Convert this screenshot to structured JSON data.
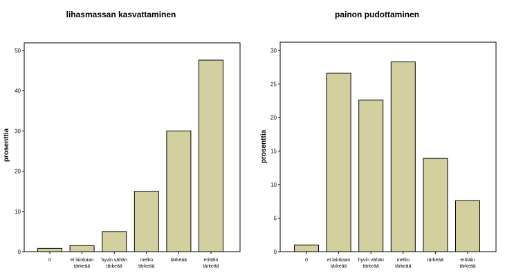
{
  "chart_data": [
    {
      "type": "bar",
      "title": "lihasmassan kasvattaminen",
      "ylabel": "prosenttia",
      "xlabel": "",
      "categories": [
        [
          "0"
        ],
        [
          "ei lainkaan",
          "tärkeää"
        ],
        [
          "hyvin vähän",
          "tärkeää"
        ],
        [
          "melko",
          "tärkeää"
        ],
        [
          "tärkeää"
        ],
        [
          "erittäin",
          "tärkeää"
        ]
      ],
      "values": [
        0.8,
        1.5,
        5.0,
        15.0,
        30.0,
        47.6
      ],
      "ylim": [
        0,
        50
      ],
      "yticks": [
        0,
        10,
        20,
        30,
        40,
        50
      ],
      "bar_color": "#d4cf9e",
      "grid": false
    },
    {
      "type": "bar",
      "title": "painon pudottaminen",
      "ylabel": "prosenttia",
      "xlabel": "",
      "categories": [
        [
          "0"
        ],
        [
          "ei lainkaan",
          "tärkeää"
        ],
        [
          "hyvin vähän",
          "tärkeää"
        ],
        [
          "melko",
          "tärkeää"
        ],
        [
          "tärkeää"
        ],
        [
          "erittäin",
          "tärkeää"
        ]
      ],
      "values": [
        1.0,
        26.6,
        22.6,
        28.3,
        13.9,
        7.6
      ],
      "ylim": [
        0,
        30
      ],
      "yticks": [
        0,
        5,
        10,
        15,
        20,
        25,
        30
      ],
      "bar_color": "#d4cf9e",
      "grid": false
    }
  ]
}
